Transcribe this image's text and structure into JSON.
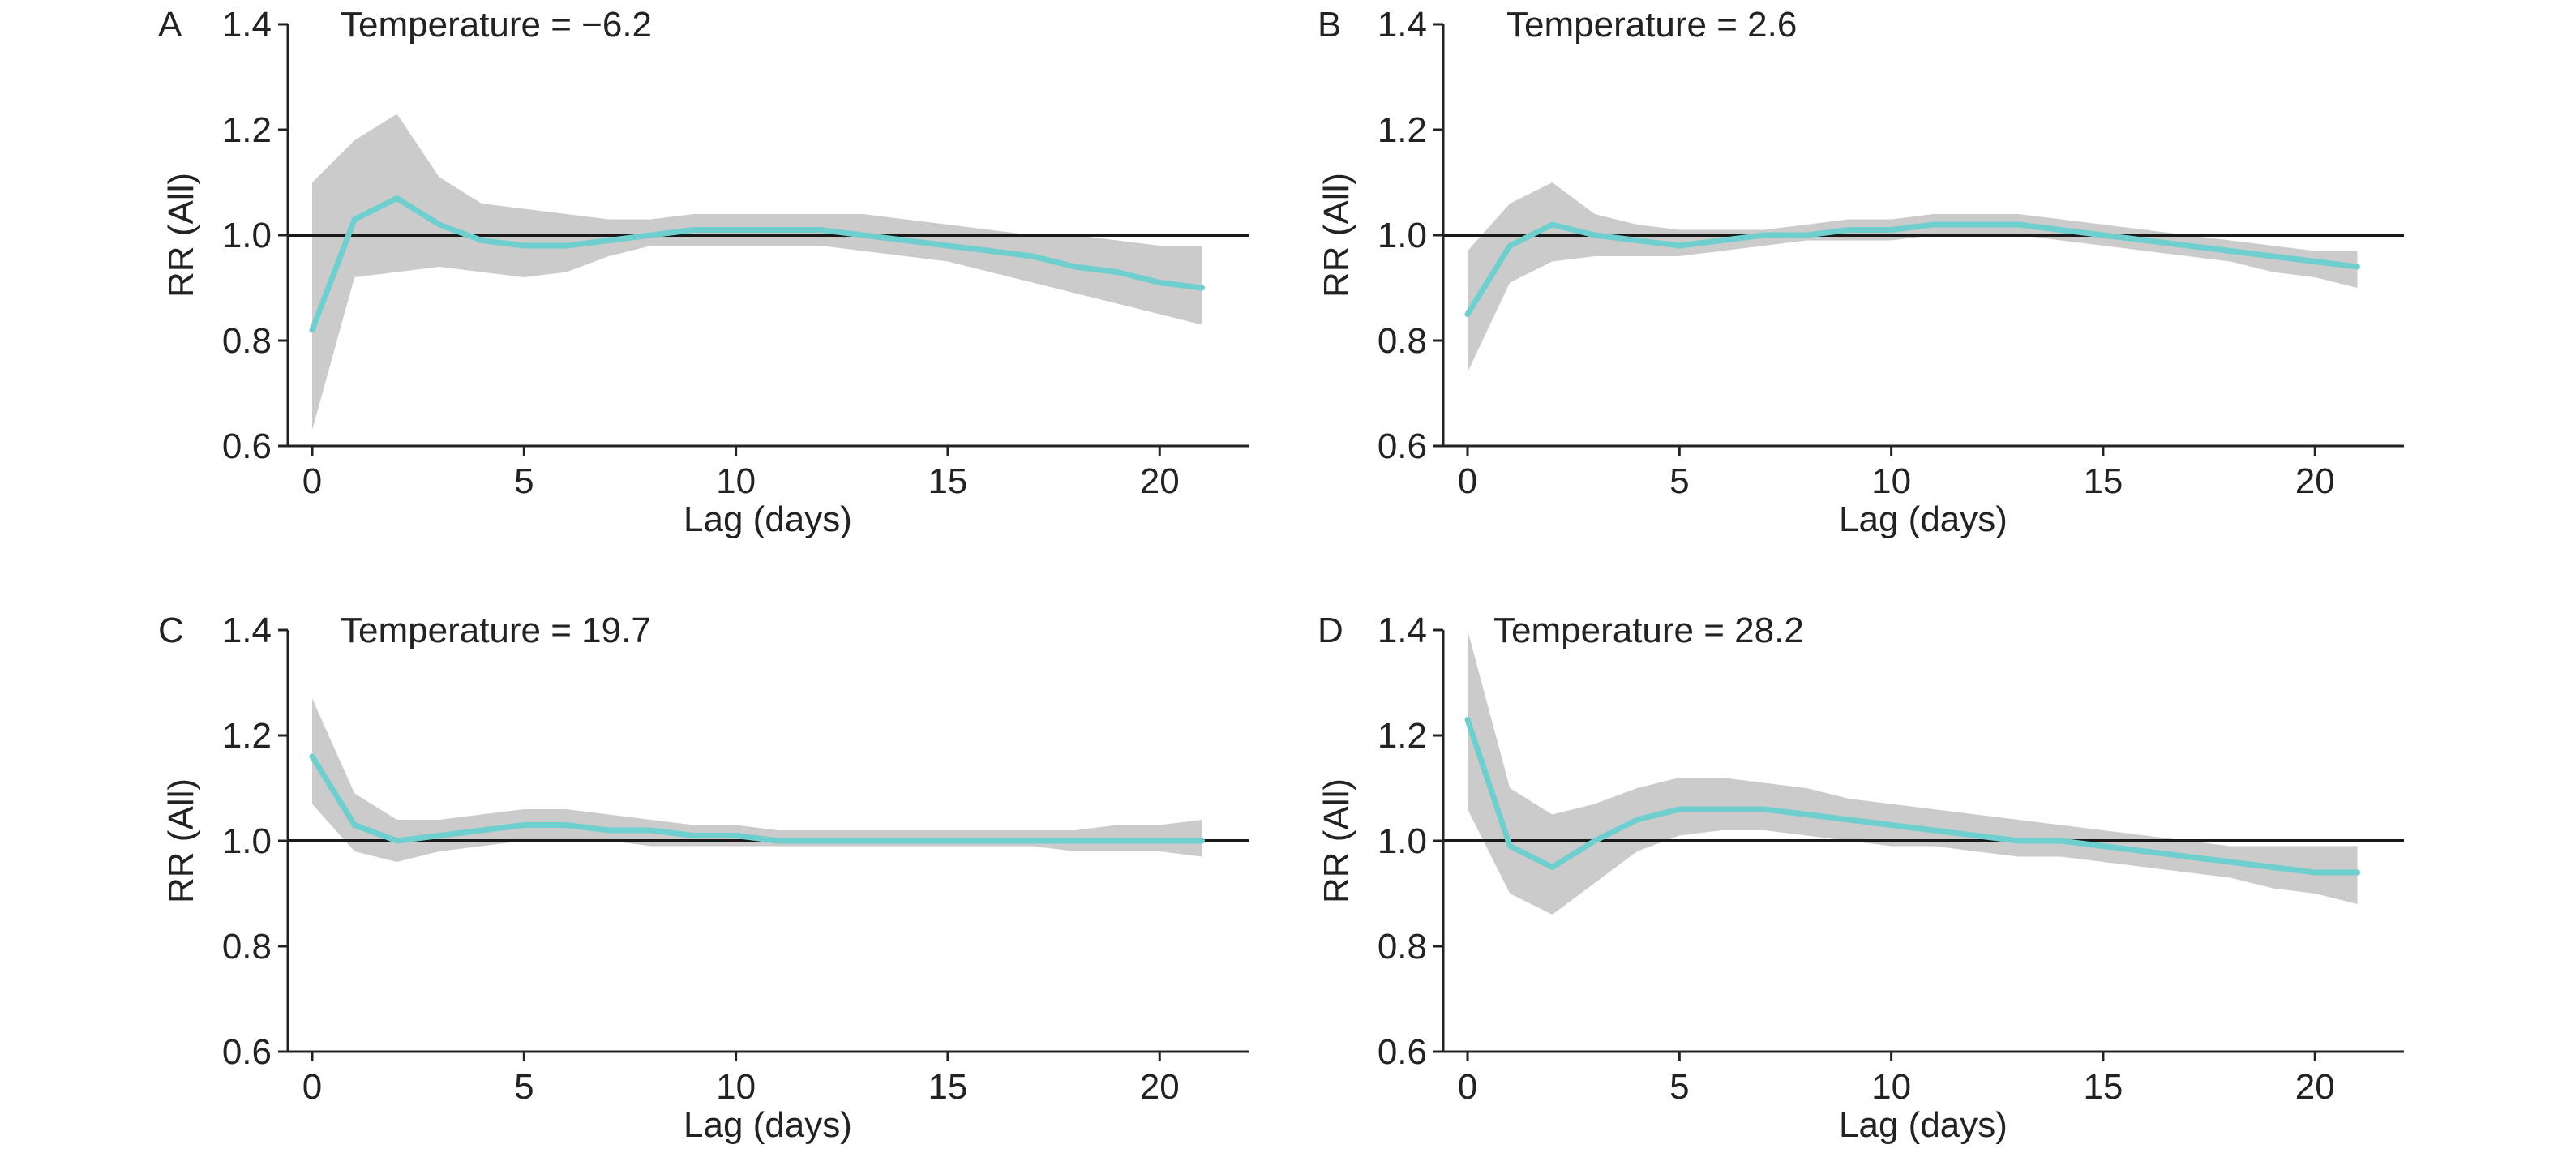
{
  "chart_data": [
    {
      "type": "line",
      "panel_label": "A",
      "title": "Temperature = −6.2",
      "xlabel": "Lag (days)",
      "ylabel": "RR (All)",
      "xlim": [
        0,
        21
      ],
      "ylim": [
        0.6,
        1.4
      ],
      "xticks": [
        0,
        5,
        10,
        15,
        20
      ],
      "yticks": [
        "0.6",
        "0.8",
        "1.0",
        "1.2",
        "1.4"
      ],
      "reference_line": 1.0,
      "grid": false,
      "colors": {
        "line": "#6fcfcf",
        "band": "#c8c8c8"
      },
      "x": [
        0,
        1,
        2,
        3,
        4,
        5,
        6,
        7,
        8,
        9,
        10,
        11,
        12,
        13,
        14,
        15,
        16,
        17,
        18,
        19,
        20,
        21
      ],
      "series": [
        {
          "values": [
            0.82,
            1.03,
            1.07,
            1.02,
            0.99,
            0.98,
            0.98,
            0.99,
            1.0,
            1.01,
            1.01,
            1.01,
            1.01,
            1.0,
            0.99,
            0.98,
            0.97,
            0.96,
            0.94,
            0.93,
            0.91,
            0.9
          ]
        },
        {
          "values": [
            0.63,
            0.92,
            0.93,
            0.94,
            0.93,
            0.92,
            0.93,
            0.96,
            0.98,
            0.98,
            0.98,
            0.98,
            0.98,
            0.97,
            0.96,
            0.95,
            0.93,
            0.91,
            0.89,
            0.87,
            0.85,
            0.83
          ]
        },
        {
          "values": [
            1.1,
            1.18,
            1.23,
            1.11,
            1.06,
            1.05,
            1.04,
            1.03,
            1.03,
            1.04,
            1.04,
            1.04,
            1.04,
            1.04,
            1.03,
            1.02,
            1.01,
            1.0,
            1.0,
            0.99,
            0.98,
            0.98
          ]
        }
      ]
    },
    {
      "type": "line",
      "panel_label": "B",
      "title": "Temperature = 2.6",
      "xlabel": "Lag (days)",
      "ylabel": "RR (All)",
      "xlim": [
        0,
        21
      ],
      "ylim": [
        0.6,
        1.4
      ],
      "xticks": [
        0,
        5,
        10,
        15,
        20
      ],
      "yticks": [
        "0.6",
        "0.8",
        "1.0",
        "1.2",
        "1.4"
      ],
      "reference_line": 1.0,
      "grid": false,
      "colors": {
        "line": "#6fcfcf",
        "band": "#c8c8c8"
      },
      "x": [
        0,
        1,
        2,
        3,
        4,
        5,
        6,
        7,
        8,
        9,
        10,
        11,
        12,
        13,
        14,
        15,
        16,
        17,
        18,
        19,
        20,
        21
      ],
      "series": [
        {
          "values": [
            0.85,
            0.98,
            1.02,
            1.0,
            0.99,
            0.98,
            0.99,
            1.0,
            1.0,
            1.01,
            1.01,
            1.02,
            1.02,
            1.02,
            1.01,
            1.0,
            0.99,
            0.98,
            0.97,
            0.96,
            0.95,
            0.94
          ]
        },
        {
          "values": [
            0.74,
            0.91,
            0.95,
            0.96,
            0.96,
            0.96,
            0.97,
            0.98,
            0.99,
            0.99,
            0.99,
            1.0,
            1.0,
            1.0,
            0.99,
            0.98,
            0.97,
            0.96,
            0.95,
            0.93,
            0.92,
            0.9
          ]
        },
        {
          "values": [
            0.97,
            1.06,
            1.1,
            1.04,
            1.02,
            1.01,
            1.01,
            1.01,
            1.02,
            1.03,
            1.03,
            1.04,
            1.04,
            1.04,
            1.03,
            1.02,
            1.01,
            1.0,
            0.99,
            0.98,
            0.97,
            0.97
          ]
        }
      ]
    },
    {
      "type": "line",
      "panel_label": "C",
      "title": "Temperature = 19.7",
      "xlabel": "Lag (days)",
      "ylabel": "RR (All)",
      "xlim": [
        0,
        21
      ],
      "ylim": [
        0.6,
        1.4
      ],
      "xticks": [
        0,
        5,
        10,
        15,
        20
      ],
      "yticks": [
        "0.6",
        "0.8",
        "1.0",
        "1.2",
        "1.4"
      ],
      "reference_line": 1.0,
      "grid": false,
      "colors": {
        "line": "#6fcfcf",
        "band": "#c8c8c8"
      },
      "x": [
        0,
        1,
        2,
        3,
        4,
        5,
        6,
        7,
        8,
        9,
        10,
        11,
        12,
        13,
        14,
        15,
        16,
        17,
        18,
        19,
        20,
        21
      ],
      "series": [
        {
          "values": [
            1.16,
            1.03,
            1.0,
            1.01,
            1.02,
            1.03,
            1.03,
            1.02,
            1.02,
            1.01,
            1.01,
            1.0,
            1.0,
            1.0,
            1.0,
            1.0,
            1.0,
            1.0,
            1.0,
            1.0,
            1.0,
            1.0
          ]
        },
        {
          "values": [
            1.07,
            0.98,
            0.96,
            0.98,
            0.99,
            1.0,
            1.0,
            1.0,
            0.99,
            0.99,
            0.99,
            0.99,
            0.99,
            0.99,
            0.99,
            0.99,
            0.99,
            0.99,
            0.98,
            0.98,
            0.98,
            0.97
          ]
        },
        {
          "values": [
            1.27,
            1.09,
            1.04,
            1.04,
            1.05,
            1.06,
            1.06,
            1.05,
            1.04,
            1.03,
            1.03,
            1.02,
            1.02,
            1.02,
            1.02,
            1.02,
            1.02,
            1.02,
            1.02,
            1.03,
            1.03,
            1.04
          ]
        }
      ]
    },
    {
      "type": "line",
      "panel_label": "D",
      "title": "Temperature = 28.2",
      "xlabel": "Lag (days)",
      "ylabel": "RR (All)",
      "xlim": [
        0,
        21
      ],
      "ylim": [
        0.6,
        1.4
      ],
      "xticks": [
        0,
        5,
        10,
        15,
        20
      ],
      "yticks": [
        "0.6",
        "0.8",
        "1.0",
        "1.2",
        "1.4"
      ],
      "reference_line": 1.0,
      "grid": false,
      "colors": {
        "line": "#6fcfcf",
        "band": "#c8c8c8"
      },
      "x": [
        0,
        1,
        2,
        3,
        4,
        5,
        6,
        7,
        8,
        9,
        10,
        11,
        12,
        13,
        14,
        15,
        16,
        17,
        18,
        19,
        20,
        21
      ],
      "series": [
        {
          "values": [
            1.23,
            0.99,
            0.95,
            1.0,
            1.04,
            1.06,
            1.06,
            1.06,
            1.05,
            1.04,
            1.03,
            1.02,
            1.01,
            1.0,
            1.0,
            0.99,
            0.98,
            0.97,
            0.96,
            0.95,
            0.94,
            0.94
          ]
        },
        {
          "values": [
            1.06,
            0.9,
            0.86,
            0.92,
            0.98,
            1.01,
            1.02,
            1.02,
            1.01,
            1.0,
            0.99,
            0.99,
            0.98,
            0.97,
            0.97,
            0.96,
            0.95,
            0.94,
            0.93,
            0.91,
            0.9,
            0.88
          ]
        },
        {
          "values": [
            1.4,
            1.1,
            1.05,
            1.07,
            1.1,
            1.12,
            1.12,
            1.11,
            1.1,
            1.08,
            1.07,
            1.06,
            1.05,
            1.04,
            1.03,
            1.02,
            1.01,
            1.0,
            0.99,
            0.99,
            0.99,
            0.99
          ]
        }
      ]
    }
  ]
}
